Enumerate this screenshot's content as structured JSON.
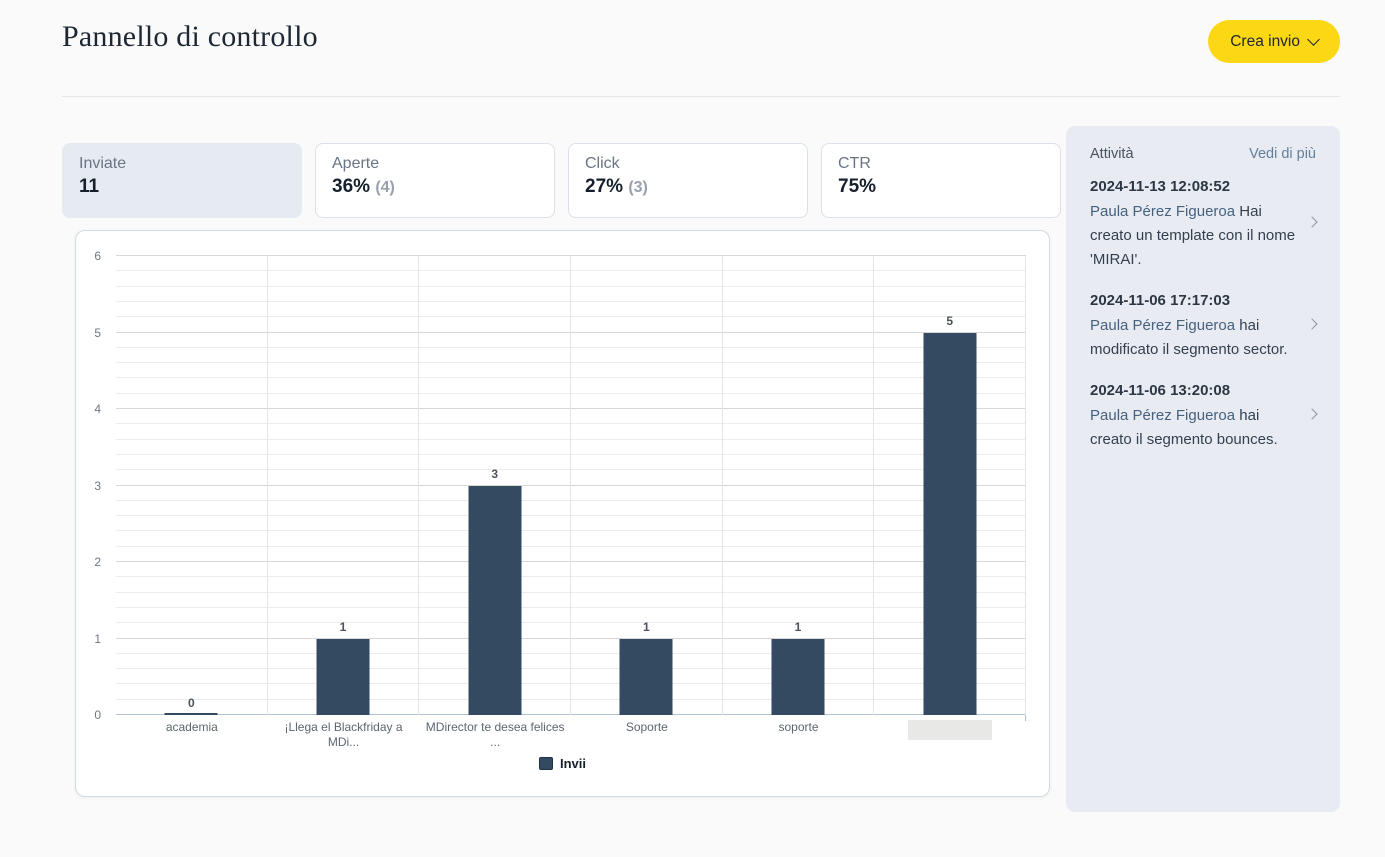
{
  "header": {
    "title": "Pannello di controllo",
    "create_button_label": "Crea invio"
  },
  "stats": [
    {
      "label": "Inviate",
      "value": "11",
      "sub": "",
      "selected": true
    },
    {
      "label": "Aperte",
      "value": "36%",
      "sub": "(4)",
      "selected": false
    },
    {
      "label": "Click",
      "value": "27%",
      "sub": "(3)",
      "selected": false
    },
    {
      "label": "CTR",
      "value": "75%",
      "sub": "",
      "selected": false
    }
  ],
  "chart_data": {
    "type": "bar",
    "categories": [
      "academia",
      "¡Llega el Blackfriday a MDi...",
      "MDirector te desea felices ...",
      "Soporte",
      "soporte",
      ""
    ],
    "values": [
      0,
      1,
      3,
      1,
      1,
      5
    ],
    "masked_category_index": 5,
    "series_name": "Invii",
    "title": "",
    "xlabel": "",
    "ylabel": "",
    "ylim": [
      0,
      6
    ],
    "y_ticks": [
      0,
      1,
      2,
      3,
      4,
      5,
      6
    ],
    "minor_step": 0.2,
    "grid": true,
    "legend_position": "bottom",
    "bar_color": "#334a60"
  },
  "activity": {
    "title": "Attività",
    "more_link": "Vedi di più",
    "items": [
      {
        "date": "2024-11-13 12:08:52",
        "actor": "Paula Pérez Figueroa",
        "text": "Hai creato un template con il nome 'MIRAI'."
      },
      {
        "date": "2024-11-06 17:17:03",
        "actor": "Paula Pérez Figueroa",
        "text": "hai modificato il segmento sector."
      },
      {
        "date": "2024-11-06 13:20:08",
        "actor": "Paula Pérez Figueroa",
        "text": "hai creato il segmento bounces."
      }
    ]
  },
  "colors": {
    "accent_yellow": "#fbd714",
    "bar_dark_slate": "#334a60",
    "sidebar_bg": "#e8ecf2",
    "selected_card_bg": "#e6ebf2",
    "page_bg": "#fafafa"
  }
}
